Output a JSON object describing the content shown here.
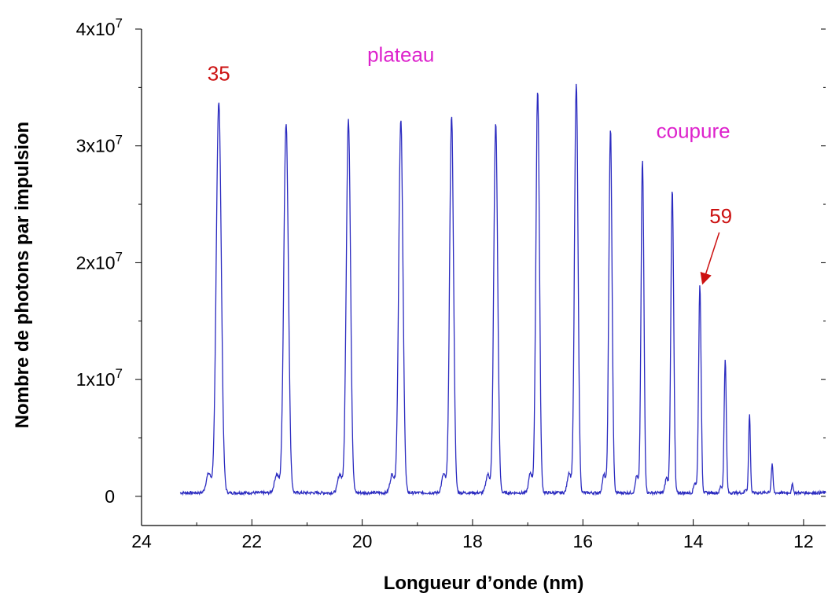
{
  "chart_data": {
    "type": "line",
    "xlabel": "Longueur d’onde (nm)",
    "ylabel": "Nombre de photons par impulsion",
    "xlim": [
      24,
      11.6
    ],
    "ylim": [
      -2500000,
      40000000
    ],
    "x_reversed": true,
    "x_ticks": [
      {
        "value": 24,
        "label": "24"
      },
      {
        "value": 22,
        "label": "22"
      },
      {
        "value": 20,
        "label": "20"
      },
      {
        "value": 18,
        "label": "18"
      },
      {
        "value": 16,
        "label": "16"
      },
      {
        "value": 14,
        "label": "14"
      },
      {
        "value": 12,
        "label": "12"
      }
    ],
    "y_ticks": [
      {
        "value": 0,
        "label": "0",
        "exp": ""
      },
      {
        "value": 10000000,
        "label": "1x10",
        "exp": "7"
      },
      {
        "value": 20000000,
        "label": "2x10",
        "exp": "7"
      },
      {
        "value": 30000000,
        "label": "3x10",
        "exp": "7"
      },
      {
        "value": 40000000,
        "label": "4x10",
        "exp": "7"
      }
    ],
    "grid": false,
    "series": [
      {
        "color": "#2b2bc0",
        "baseline": 300000,
        "x_range": [
          23.3,
          11.6
        ],
        "peaks": [
          {
            "x": 22.6,
            "y": 33500000,
            "width": 0.07
          },
          {
            "x": 21.38,
            "y": 31700000,
            "width": 0.065
          },
          {
            "x": 20.25,
            "y": 31900000,
            "width": 0.06
          },
          {
            "x": 19.3,
            "y": 31900000,
            "width": 0.06
          },
          {
            "x": 18.38,
            "y": 32300000,
            "width": 0.055
          },
          {
            "x": 17.58,
            "y": 31700000,
            "width": 0.055
          },
          {
            "x": 16.82,
            "y": 34500000,
            "width": 0.05
          },
          {
            "x": 16.12,
            "y": 35000000,
            "width": 0.05
          },
          {
            "x": 15.5,
            "y": 31200000,
            "width": 0.045
          },
          {
            "x": 14.92,
            "y": 28500000,
            "width": 0.04
          },
          {
            "x": 14.38,
            "y": 26000000,
            "width": 0.04
          },
          {
            "x": 13.88,
            "y": 17700000,
            "width": 0.035
          },
          {
            "x": 13.42,
            "y": 11500000,
            "width": 0.03
          },
          {
            "x": 12.98,
            "y": 6800000,
            "width": 0.025
          },
          {
            "x": 12.57,
            "y": 2400000,
            "width": 0.025
          },
          {
            "x": 12.2,
            "y": 800000,
            "width": 0.02
          }
        ]
      }
    ],
    "annotations": [
      {
        "text": "35",
        "color": "#cc1111",
        "x": 22.6,
        "y": 35600000
      },
      {
        "text": "plateau",
        "color": "#dd22cc",
        "x": 19.3,
        "y": 37200000
      },
      {
        "text": "coupure",
        "color": "#dd22cc",
        "x": 14.0,
        "y": 30700000
      },
      {
        "text": "59",
        "color": "#cc1111",
        "x": 13.5,
        "y": 23400000,
        "arrow_to": {
          "x": 13.88,
          "y": 17900000
        }
      }
    ]
  }
}
